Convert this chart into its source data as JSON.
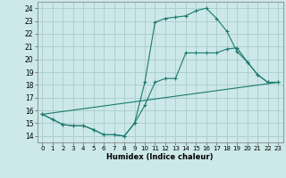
{
  "xlabel": "Humidex (Indice chaleur)",
  "bg_color": "#cce8e8",
  "grid_color": "#aacccc",
  "line_color": "#1a7a6e",
  "xlim": [
    -0.5,
    23.5
  ],
  "ylim": [
    13.5,
    24.5
  ],
  "xticks": [
    0,
    1,
    2,
    3,
    4,
    5,
    6,
    7,
    8,
    9,
    10,
    11,
    12,
    13,
    14,
    15,
    16,
    17,
    18,
    19,
    20,
    21,
    22,
    23
  ],
  "yticks": [
    14,
    15,
    16,
    17,
    18,
    19,
    20,
    21,
    22,
    23,
    24
  ],
  "line1_x": [
    0,
    1,
    2,
    3,
    4,
    5,
    6,
    7,
    8,
    9,
    10,
    11,
    12,
    13,
    14,
    15,
    16,
    17,
    18,
    19,
    20,
    21,
    22,
    23
  ],
  "line1_y": [
    15.7,
    15.3,
    14.9,
    14.8,
    14.8,
    14.5,
    14.1,
    14.1,
    14.0,
    15.0,
    16.4,
    18.2,
    18.5,
    18.5,
    20.5,
    20.5,
    20.5,
    20.5,
    20.8,
    20.9,
    19.8,
    18.8,
    18.2,
    18.2
  ],
  "line2_x": [
    0,
    1,
    2,
    3,
    4,
    5,
    6,
    7,
    8,
    9,
    10,
    11,
    12,
    13,
    14,
    15,
    16,
    17,
    18,
    19,
    20,
    21,
    22,
    23
  ],
  "line2_y": [
    15.7,
    15.3,
    14.9,
    14.8,
    14.8,
    14.5,
    14.1,
    14.1,
    14.0,
    15.0,
    18.2,
    22.9,
    23.2,
    23.3,
    23.4,
    23.8,
    24.0,
    23.2,
    22.2,
    20.6,
    19.8,
    18.8,
    18.2,
    18.2
  ],
  "line3_x": [
    0,
    23
  ],
  "line3_y": [
    15.7,
    18.2
  ]
}
